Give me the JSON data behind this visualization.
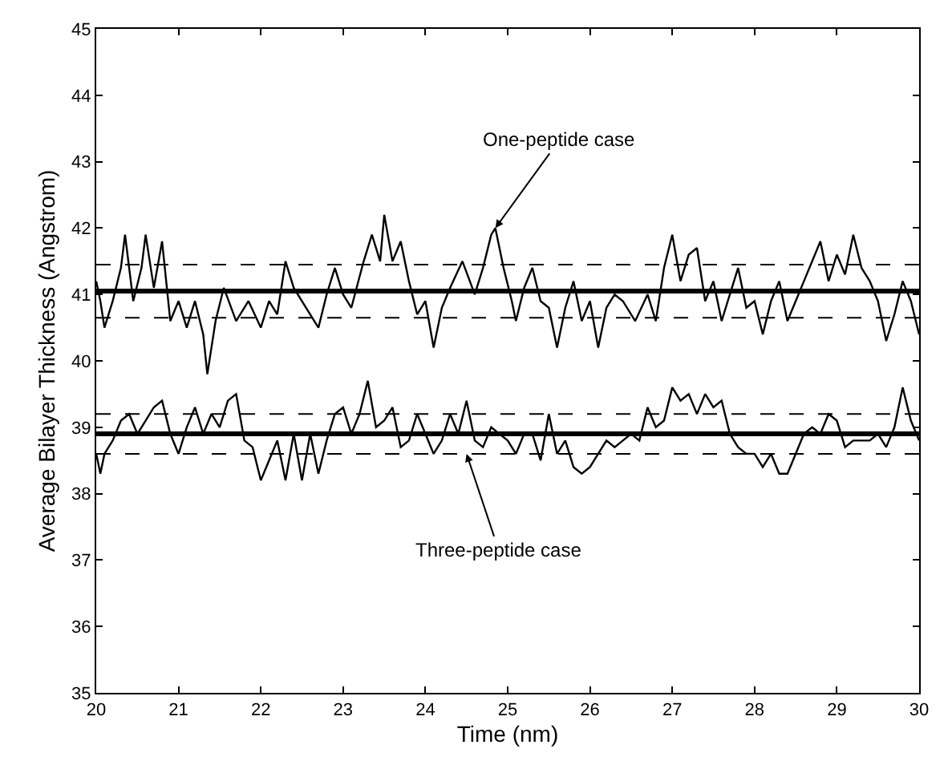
{
  "chart_data": {
    "type": "line",
    "xlabel": "Time (nm)",
    "ylabel": "Average Bilayer Thickness (Angstrom)",
    "xlim": [
      20,
      30
    ],
    "xticks": [
      20,
      21,
      22,
      23,
      24,
      25,
      26,
      27,
      28,
      29,
      30
    ],
    "ylim": [
      35,
      45
    ],
    "yticks": [
      35,
      36,
      37,
      38,
      39,
      40,
      41,
      42,
      43,
      44,
      45
    ],
    "marker": "none",
    "line_style": "solid",
    "series": [
      {
        "color": "#000000",
        "x": [
          20,
          20.05,
          20.1,
          20.2,
          20.3,
          20.35,
          20.45,
          20.55,
          20.6,
          20.7,
          20.8,
          20.9,
          21.0,
          21.1,
          21.2,
          21.3,
          21.35,
          21.45,
          21.55,
          21.7,
          21.85,
          22.0,
          22.1,
          22.2,
          22.3,
          22.4,
          22.55,
          22.7,
          22.8,
          22.9,
          23.0,
          23.1,
          23.25,
          23.35,
          23.45,
          23.5,
          23.6,
          23.7,
          23.8,
          23.9,
          24.0,
          24.1,
          24.2,
          24.3,
          24.45,
          24.6,
          24.7,
          24.8,
          24.85,
          24.95,
          25.05,
          25.1,
          25.2,
          25.3,
          25.4,
          25.5,
          25.6,
          25.7,
          25.8,
          25.9,
          26.0,
          26.1,
          26.2,
          26.3,
          26.4,
          26.55,
          26.7,
          26.8,
          26.9,
          27.0,
          27.1,
          27.2,
          27.3,
          27.4,
          27.5,
          27.6,
          27.7,
          27.8,
          27.9,
          28.0,
          28.1,
          28.2,
          28.3,
          28.4,
          28.5,
          28.6,
          28.7,
          28.8,
          28.9,
          29.0,
          29.1,
          29.2,
          29.3,
          29.4,
          29.5,
          29.6,
          29.7,
          29.8,
          29.9,
          30
        ],
        "values": [
          41.2,
          40.9,
          40.5,
          40.9,
          41.4,
          41.9,
          40.9,
          41.4,
          41.9,
          41.1,
          41.8,
          40.6,
          40.9,
          40.5,
          40.9,
          40.4,
          39.8,
          40.6,
          41.1,
          40.6,
          40.9,
          40.5,
          40.9,
          40.7,
          41.5,
          41.1,
          40.8,
          40.5,
          41.0,
          41.4,
          41.0,
          40.8,
          41.5,
          41.9,
          41.5,
          42.2,
          41.5,
          41.8,
          41.2,
          40.7,
          40.9,
          40.2,
          40.8,
          41.1,
          41.5,
          41.0,
          41.4,
          41.9,
          42.0,
          41.4,
          40.9,
          40.6,
          41.1,
          41.4,
          40.9,
          40.8,
          40.2,
          40.8,
          41.2,
          40.6,
          40.9,
          40.2,
          40.8,
          41.0,
          40.9,
          40.6,
          41.0,
          40.6,
          41.4,
          41.9,
          41.2,
          41.6,
          41.7,
          40.9,
          41.2,
          40.6,
          41.0,
          41.4,
          40.8,
          40.9,
          40.4,
          40.9,
          41.2,
          40.6,
          40.9,
          41.2,
          41.5,
          41.8,
          41.2,
          41.6,
          41.3,
          41.9,
          41.4,
          41.2,
          40.9,
          40.3,
          40.7,
          41.2,
          40.9,
          40.4
        ]
      },
      {
        "color": "#000000",
        "x": [
          20,
          20.05,
          20.1,
          20.2,
          20.3,
          20.4,
          20.5,
          20.6,
          20.7,
          20.8,
          20.9,
          21.0,
          21.1,
          21.2,
          21.3,
          21.4,
          21.5,
          21.6,
          21.7,
          21.8,
          21.9,
          22.0,
          22.1,
          22.2,
          22.3,
          22.4,
          22.5,
          22.6,
          22.7,
          22.8,
          22.9,
          23.0,
          23.1,
          23.2,
          23.3,
          23.4,
          23.5,
          23.6,
          23.7,
          23.8,
          23.9,
          24.0,
          24.1,
          24.2,
          24.3,
          24.4,
          24.5,
          24.6,
          24.7,
          24.8,
          24.9,
          25.0,
          25.1,
          25.2,
          25.3,
          25.4,
          25.5,
          25.6,
          25.7,
          25.8,
          25.9,
          26.0,
          26.1,
          26.2,
          26.3,
          26.4,
          26.5,
          26.6,
          26.7,
          26.8,
          26.9,
          27.0,
          27.1,
          27.2,
          27.3,
          27.4,
          27.5,
          27.6,
          27.7,
          27.8,
          27.9,
          28.0,
          28.1,
          28.2,
          28.3,
          28.4,
          28.5,
          28.6,
          28.7,
          28.8,
          28.9,
          29.0,
          29.1,
          29.2,
          29.3,
          29.4,
          29.5,
          29.6,
          29.7,
          29.8,
          29.9,
          30
        ],
        "values": [
          38.6,
          38.3,
          38.6,
          38.8,
          39.1,
          39.2,
          38.9,
          39.1,
          39.3,
          39.4,
          38.9,
          38.6,
          39.0,
          39.3,
          38.9,
          39.2,
          39.0,
          39.4,
          39.5,
          38.8,
          38.7,
          38.2,
          38.5,
          38.8,
          38.2,
          38.9,
          38.2,
          38.9,
          38.3,
          38.8,
          39.2,
          39.3,
          38.9,
          39.2,
          39.7,
          39.0,
          39.1,
          39.3,
          38.7,
          38.8,
          39.2,
          38.9,
          38.6,
          38.8,
          39.2,
          38.9,
          39.4,
          38.8,
          38.7,
          39.0,
          38.9,
          38.8,
          38.6,
          38.9,
          38.9,
          38.5,
          39.2,
          38.6,
          38.8,
          38.4,
          38.3,
          38.4,
          38.6,
          38.8,
          38.7,
          38.8,
          38.9,
          38.8,
          39.3,
          39.0,
          39.1,
          39.6,
          39.4,
          39.5,
          39.2,
          39.5,
          39.3,
          39.4,
          38.9,
          38.7,
          38.6,
          38.6,
          38.4,
          38.6,
          38.3,
          38.3,
          38.6,
          38.9,
          39.0,
          38.9,
          39.2,
          39.1,
          38.7,
          38.8,
          38.8,
          38.8,
          38.9,
          38.7,
          39.0,
          39.6,
          39.1,
          38.8
        ]
      }
    ],
    "ref_lines": [
      {
        "axis": "y",
        "value": 41.05,
        "color": "#000000",
        "line_style": "solid"
      },
      {
        "axis": "y",
        "value": 41.45,
        "color": "#000000",
        "line_style": "dashed"
      },
      {
        "axis": "y",
        "value": 40.65,
        "color": "#000000",
        "line_style": "dashed"
      },
      {
        "axis": "y",
        "value": 38.9,
        "color": "#000000",
        "line_style": "solid"
      },
      {
        "axis": "y",
        "value": 39.2,
        "color": "#000000",
        "line_style": "dashed"
      },
      {
        "axis": "y",
        "value": 38.6,
        "color": "#000000",
        "line_style": "dashed"
      }
    ],
    "annotations": [
      {
        "text": "One-peptide case",
        "x": 24.85,
        "y": 42.0
      },
      {
        "text": "Three-peptide case",
        "x": 24.5,
        "y": 38.6
      }
    ]
  }
}
